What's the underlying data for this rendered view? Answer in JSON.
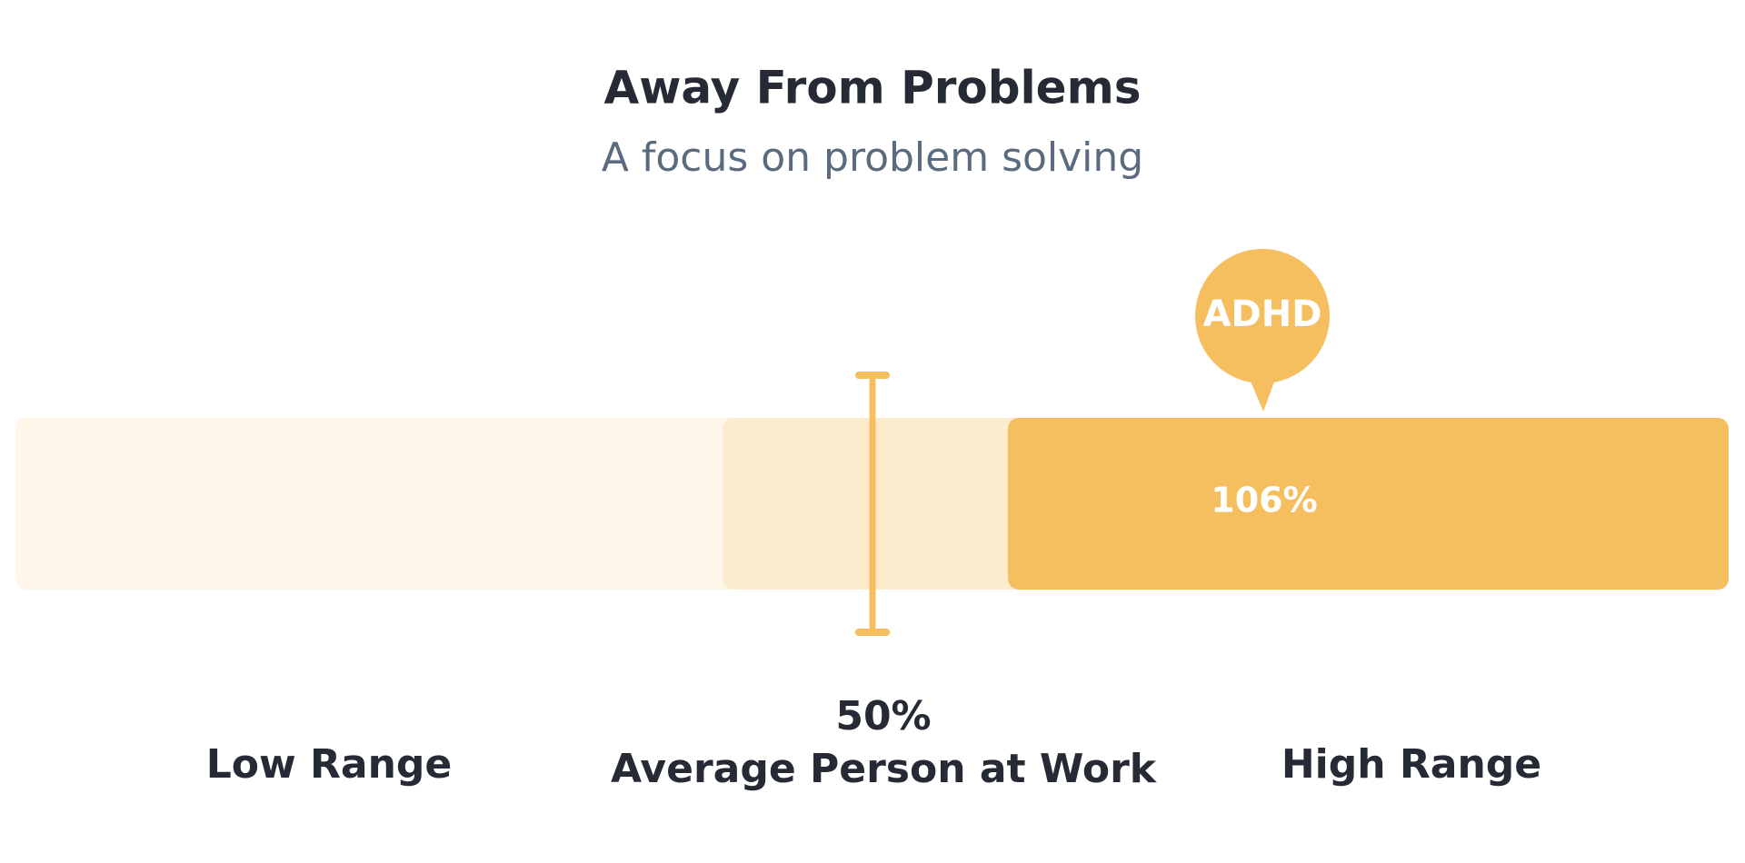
{
  "header": {
    "title": "Away From Problems",
    "subtitle": "A focus on problem solving"
  },
  "marker": {
    "label": "ADHD",
    "value_label": "106%"
  },
  "average": {
    "value_label": "50%",
    "label": "Average Person at Work"
  },
  "ranges": {
    "low": "Low Range",
    "high": "High Range"
  }
}
